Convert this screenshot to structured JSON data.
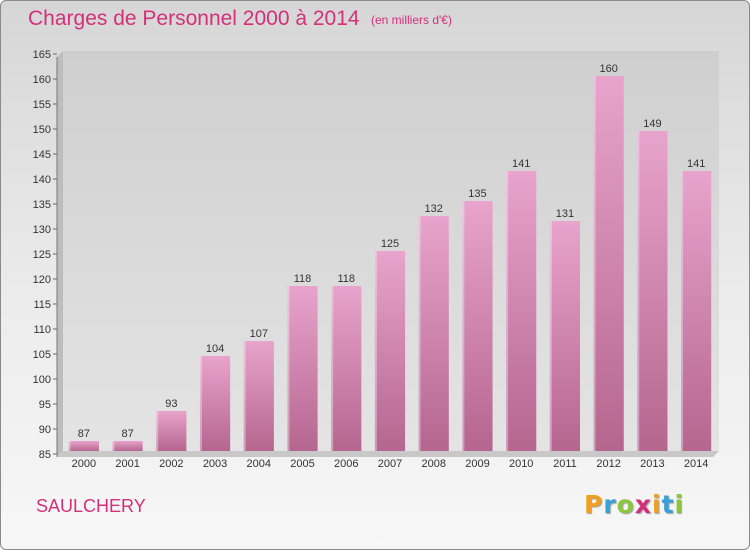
{
  "header": {
    "title": "Charges de Personnel 2000 à 2014",
    "subtitle": "(en milliers d'€)"
  },
  "footer": {
    "town": "SAULCHERY",
    "logo_letters": [
      "P",
      "r",
      "o",
      "x",
      "i",
      "t",
      "i"
    ],
    "logo_colors": [
      "#f0a020",
      "#3aa0d8",
      "#8cc63f",
      "#d4307a",
      "#f0a020",
      "#3aa0d8",
      "#8cc63f"
    ]
  },
  "colors": {
    "accent": "#d4307a",
    "bar_top": "#e8a4cc",
    "bar_bottom": "#b5668f"
  },
  "chart_data": {
    "type": "bar",
    "categories": [
      "2000",
      "2001",
      "2002",
      "2003",
      "2004",
      "2005",
      "2006",
      "2007",
      "2008",
      "2009",
      "2010",
      "2011",
      "2012",
      "2013",
      "2014"
    ],
    "values": [
      87,
      87,
      93,
      104,
      107,
      118,
      118,
      125,
      132,
      135,
      141,
      131,
      160,
      149,
      141
    ],
    "ylim": [
      85,
      165
    ],
    "yticks": [
      85,
      90,
      95,
      100,
      105,
      110,
      115,
      120,
      125,
      130,
      135,
      140,
      145,
      150,
      155,
      160,
      165
    ],
    "grid": false
  }
}
